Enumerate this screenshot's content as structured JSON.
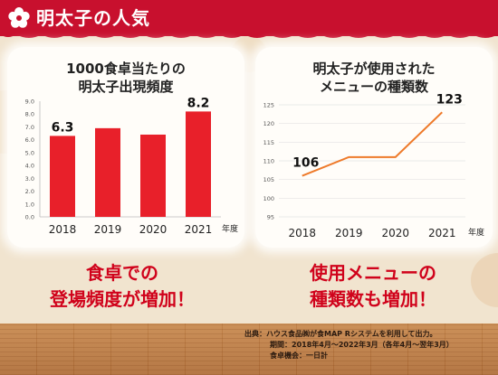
{
  "header": {
    "title": "明太子の人気"
  },
  "left_chart": {
    "title_line1": "1000食卓当たりの",
    "title_line2": "明太子出現頻度",
    "unit": "年度",
    "bar_color": "#e8202a"
  },
  "right_chart": {
    "title_line1": "明太子が使用された",
    "title_line2": "メニューの種類数",
    "unit": "年度",
    "line_color": "#ee7a2a"
  },
  "captions": {
    "left_line1": "食卓での",
    "left_line2": "登場頻度が増加！",
    "right_line1": "使用メニューの",
    "right_line2": "種類数も増加！"
  },
  "notes": {
    "line1": "出典：ハウス食品㈱が食MAP Rシステムを利用して出力。",
    "line2": "期間：2018年4月～2022年3月（各年4月～翌年3月）",
    "line3": "食卓機会：一日計"
  },
  "chart_data": [
    {
      "type": "bar",
      "title": "1000食卓当たりの明太子出現頻度",
      "categories": [
        "2018",
        "2019",
        "2020",
        "2021"
      ],
      "values": [
        6.3,
        6.9,
        6.4,
        8.2
      ],
      "data_labels": [
        "6.3",
        "",
        "",
        "8.2"
      ],
      "xlabel": "年度",
      "ylim": [
        0,
        9
      ],
      "yticks": [
        "0.0",
        "1.0",
        "2.0",
        "3.0",
        "4.0",
        "5.0",
        "6.0",
        "7.0",
        "8.0",
        "9.0"
      ],
      "grid": false
    },
    {
      "type": "line",
      "title": "明太子が使用されたメニューの種類数",
      "categories": [
        "2018",
        "2019",
        "2020",
        "2021"
      ],
      "values": [
        106,
        111,
        111,
        123
      ],
      "data_labels": [
        "106",
        "",
        "",
        "123"
      ],
      "xlabel": "年度",
      "ylim": [
        95,
        125
      ],
      "yticks": [
        "95",
        "100",
        "105",
        "110",
        "115",
        "120",
        "125"
      ],
      "grid": true
    }
  ]
}
